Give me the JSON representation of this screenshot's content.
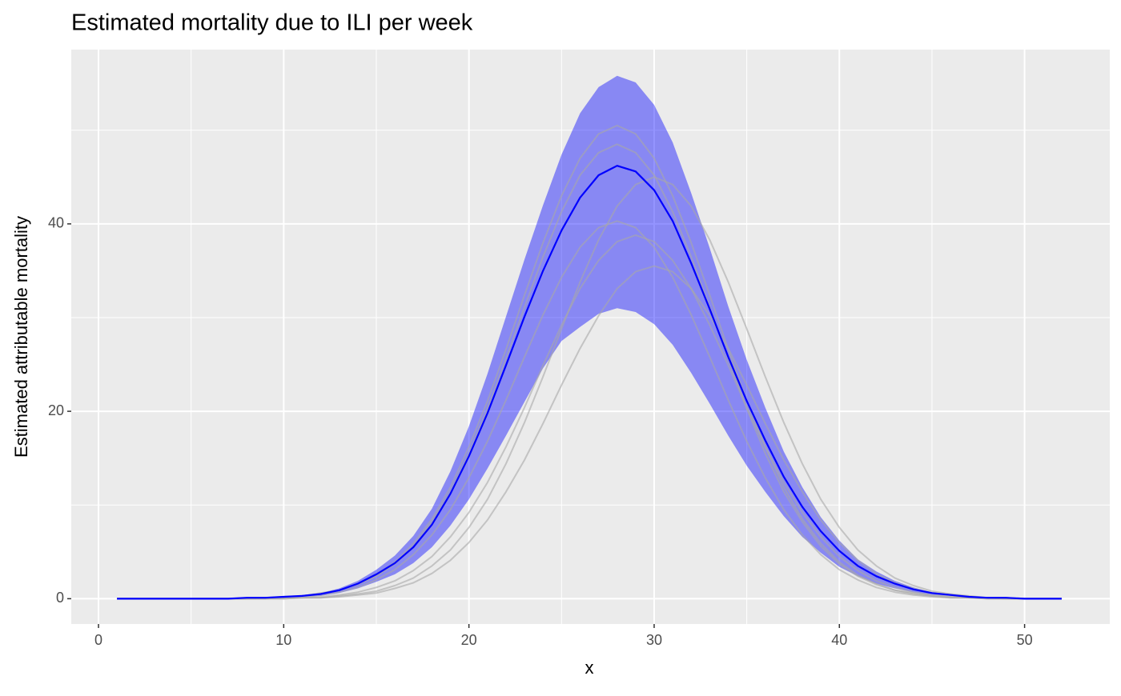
{
  "chart_data": {
    "type": "line",
    "title": "Estimated mortality due to ILI per week",
    "x_label": "x",
    "y_label": "Estimated attributable mortality",
    "x": [
      1,
      2,
      3,
      4,
      5,
      6,
      7,
      8,
      9,
      10,
      11,
      12,
      13,
      14,
      15,
      16,
      17,
      18,
      19,
      20,
      21,
      22,
      23,
      24,
      25,
      26,
      27,
      28,
      29,
      30,
      31,
      32,
      33,
      34,
      35,
      36,
      37,
      38,
      39,
      40,
      41,
      42,
      43,
      44,
      45,
      46,
      47,
      48,
      49,
      50,
      51,
      52
    ],
    "band": {
      "color": "#0000ff",
      "alpha": 0.42,
      "upper": [
        0,
        0,
        0,
        0,
        0,
        0,
        0,
        0.1,
        0.1,
        0.2,
        0.4,
        0.6,
        1.1,
        1.9,
        3.1,
        4.6,
        6.7,
        9.6,
        13.6,
        18.4,
        24,
        30.1,
        36.2,
        42,
        47.4,
        51.8,
        54.6,
        55.8,
        55.1,
        52.7,
        48.7,
        43.3,
        37.4,
        31.2,
        25.5,
        20.4,
        15.7,
        11.9,
        8.7,
        6.2,
        4.2,
        2.9,
        1.9,
        1.2,
        0.7,
        0.5,
        0.2,
        0.1,
        0.1,
        0,
        0,
        0
      ],
      "lower": [
        0,
        0,
        0,
        0,
        0,
        0,
        0,
        0,
        0.1,
        0.1,
        0.2,
        0.3,
        0.6,
        1.1,
        1.8,
        2.6,
        3.8,
        5.5,
        7.8,
        10.6,
        13.9,
        17.4,
        21,
        24.6,
        27.5,
        29,
        30.4,
        31,
        30.6,
        29.3,
        27.1,
        24.1,
        20.8,
        17.4,
        14.2,
        11.4,
        8.8,
        6.6,
        4.9,
        3.4,
        2.4,
        1.6,
        1.1,
        0.7,
        0.4,
        0.3,
        0.1,
        0.1,
        0,
        0,
        0,
        0
      ]
    },
    "series": [
      {
        "color": "#a8a8a8",
        "values": [
          0,
          0,
          0,
          0,
          0,
          0,
          0,
          0.1,
          0.1,
          0.2,
          0.3,
          0.6,
          0.9,
          1.6,
          2.5,
          3.9,
          5.9,
          8.5,
          11.9,
          16.2,
          21.1,
          26.6,
          32.4,
          38,
          43,
          47,
          49.6,
          50.5,
          49.6,
          47,
          43,
          38,
          32.4,
          26.6,
          21.1,
          16.2,
          11.9,
          8.5,
          5.9,
          3.9,
          2.5,
          1.6,
          0.9,
          0.6,
          0.3,
          0.2,
          0.1,
          0.1,
          0,
          0,
          0,
          0
        ]
      },
      {
        "color": "#a8a8a8",
        "values": [
          0,
          0,
          0,
          0,
          0,
          0,
          0,
          0,
          0.1,
          0.1,
          0.3,
          0.5,
          0.9,
          1.5,
          2.4,
          3.7,
          5.6,
          8.2,
          11.4,
          15.5,
          20.3,
          25.6,
          31.1,
          36.5,
          41.3,
          45.2,
          47.6,
          48.5,
          47.6,
          45.2,
          41.3,
          36.5,
          31.1,
          25.6,
          20.3,
          15.5,
          11.4,
          8.2,
          5.6,
          3.7,
          2.4,
          1.5,
          0.9,
          0.5,
          0.3,
          0.1,
          0.1,
          0,
          0,
          0,
          0,
          0
        ]
      },
      {
        "color": "#a8a8a8",
        "values": [
          0,
          0,
          0,
          0,
          0,
          0,
          0,
          0,
          0,
          0,
          0.1,
          0.1,
          0.3,
          0.5,
          0.8,
          1.4,
          2.2,
          3.5,
          5.2,
          7.6,
          10.6,
          14.4,
          18.8,
          23.7,
          28.8,
          33.8,
          38.3,
          41.9,
          44.2,
          45,
          44.2,
          41.9,
          38.3,
          33.8,
          28.8,
          23.7,
          18.8,
          14.4,
          10.6,
          7.6,
          5.2,
          3.5,
          2.2,
          1.4,
          0.8,
          0.5,
          0.3,
          0.1,
          0.1,
          0,
          0,
          0
        ]
      },
      {
        "color": "#a8a8a8",
        "values": [
          0,
          0,
          0,
          0,
          0,
          0,
          0,
          0,
          0.1,
          0.1,
          0.2,
          0.4,
          0.7,
          1.2,
          2,
          3.1,
          4.7,
          6.8,
          9.5,
          12.9,
          16.8,
          21.2,
          25.8,
          30.3,
          34.3,
          37.5,
          39.6,
          40.3,
          39.6,
          37.5,
          34.3,
          30.3,
          25.8,
          21.2,
          16.8,
          12.9,
          9.5,
          6.8,
          4.7,
          3.1,
          2,
          1.2,
          0.7,
          0.4,
          0.2,
          0.1,
          0.1,
          0,
          0,
          0,
          0,
          0
        ]
      },
      {
        "color": "#a8a8a8",
        "values": [
          0,
          0,
          0,
          0,
          0,
          0,
          0,
          0,
          0,
          0.1,
          0.1,
          0.2,
          0.4,
          0.7,
          1.2,
          1.9,
          3,
          4.5,
          6.6,
          9.2,
          12.4,
          16.2,
          20.4,
          24.9,
          29.2,
          33.1,
          36.1,
          38.1,
          38.8,
          38.1,
          36.1,
          33.1,
          29.2,
          24.9,
          20.4,
          16.2,
          12.4,
          9.2,
          6.6,
          4.5,
          3,
          1.9,
          1.2,
          0.7,
          0.4,
          0.2,
          0.1,
          0.1,
          0,
          0,
          0,
          0
        ]
      },
      {
        "color": "#a8a8a8",
        "values": [
          0,
          0,
          0,
          0,
          0,
          0,
          0,
          0,
          0,
          0,
          0.1,
          0.1,
          0.2,
          0.4,
          0.6,
          1.1,
          1.7,
          2.7,
          4.1,
          6,
          8.4,
          11.4,
          14.8,
          18.7,
          22.8,
          26.7,
          30.2,
          33.1,
          34.9,
          35.5,
          34.9,
          33.1,
          30.2,
          26.7,
          22.8,
          18.7,
          14.8,
          11.4,
          8.4,
          6,
          4.1,
          2.7,
          1.7,
          1.1,
          0.6,
          0.4,
          0.2,
          0.1,
          0.1,
          0,
          0,
          0
        ]
      },
      {
        "color": "#0000ff",
        "values": [
          0,
          0,
          0,
          0,
          0,
          0,
          0,
          0.1,
          0.1,
          0.2,
          0.3,
          0.5,
          0.9,
          1.6,
          2.6,
          3.8,
          5.5,
          7.9,
          11.2,
          15.2,
          19.8,
          24.9,
          30.1,
          35,
          39.3,
          42.8,
          45.2,
          46.2,
          45.6,
          43.6,
          40.3,
          35.8,
          30.9,
          25.8,
          21.1,
          16.9,
          13,
          9.8,
          7.2,
          5.1,
          3.5,
          2.4,
          1.6,
          1,
          0.6,
          0.4,
          0.2,
          0.1,
          0.1,
          0,
          0,
          0
        ]
      }
    ],
    "xlim": [
      -1.47,
      54.6
    ],
    "ylim": [
      -2.7,
      58.6
    ],
    "xticks": [
      0,
      10,
      20,
      30,
      40,
      50
    ],
    "yticks": [
      0,
      20,
      40
    ],
    "xminorticks": [
      5,
      15,
      25,
      35,
      45
    ],
    "yminorticks": [
      10,
      30,
      50
    ],
    "grid": true
  }
}
